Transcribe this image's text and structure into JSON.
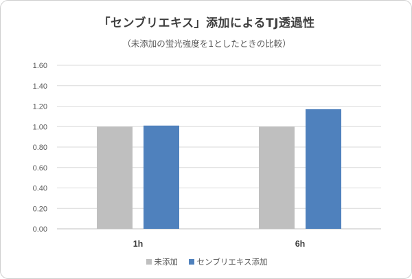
{
  "chart_data": {
    "type": "bar",
    "title": "「センブリエキス」添加によるTJ透過性",
    "subtitle": "（未添加の蛍光強度を1としたときの比較）",
    "categories": [
      "1h",
      "6h"
    ],
    "series": [
      {
        "name": "未添加",
        "values": [
          1.0,
          1.0
        ],
        "color": "#bfbfbf"
      },
      {
        "name": "センブリエキス添加",
        "values": [
          1.01,
          1.17
        ],
        "color": "#4f81bd"
      }
    ],
    "xlabel": "",
    "ylabel": "",
    "ylim": [
      0,
      1.6
    ],
    "yticks": [
      "0.00",
      "0.20",
      "0.40",
      "0.60",
      "0.80",
      "1.00",
      "1.20",
      "1.40",
      "1.60"
    ],
    "grid": true,
    "legend_position": "bottom"
  }
}
